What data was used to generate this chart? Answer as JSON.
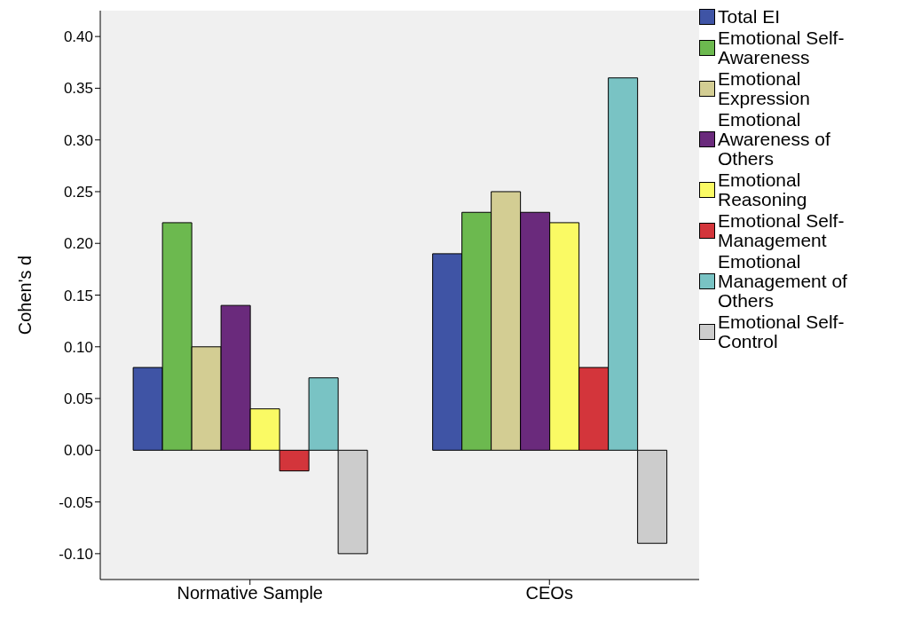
{
  "chart_data": {
    "type": "bar",
    "ylabel": "Cohen's d",
    "categories": [
      "Normative Sample",
      "CEOs"
    ],
    "series": [
      {
        "name": "Total EI",
        "color": "#3f54a5",
        "values": [
          0.08,
          0.19
        ]
      },
      {
        "name": "Emotional Self-Awareness",
        "color": "#6cb94f",
        "values": [
          0.22,
          0.23
        ]
      },
      {
        "name": "Emotional Expression",
        "color": "#d3cd93",
        "values": [
          0.1,
          0.25
        ]
      },
      {
        "name": "Emotional Awareness of Others",
        "color": "#6a2a7c",
        "values": [
          0.14,
          0.23
        ]
      },
      {
        "name": "Emotional Reasoning",
        "color": "#fafa64",
        "values": [
          0.04,
          0.22
        ]
      },
      {
        "name": "Emotional Self-Management",
        "color": "#d3353b",
        "values": [
          -0.02,
          0.08
        ]
      },
      {
        "name": "Emotional Management of Others",
        "color": "#79c3c4",
        "values": [
          0.07,
          0.36
        ]
      },
      {
        "name": "Emotional Self-Control",
        "color": "#cccccc",
        "values": [
          -0.1,
          -0.09
        ]
      }
    ],
    "ylim": [
      -0.125,
      0.425
    ],
    "yticks": [
      {
        "value": -0.1,
        "label": "-0.10"
      },
      {
        "value": -0.05,
        "label": "-0.05"
      },
      {
        "value": 0,
        "label": "0.00"
      },
      {
        "value": 0.05,
        "label": "0.05"
      },
      {
        "value": 0.1,
        "label": "0.10"
      },
      {
        "value": 0.15,
        "label": "0.15"
      },
      {
        "value": 0.2,
        "label": "0.20"
      },
      {
        "value": 0.25,
        "label": "0.25"
      },
      {
        "value": 0.3,
        "label": "0.30"
      },
      {
        "value": 0.35,
        "label": "0.35"
      },
      {
        "value": 0.4,
        "label": "0.40"
      }
    ],
    "grid": false,
    "legend": "right"
  }
}
